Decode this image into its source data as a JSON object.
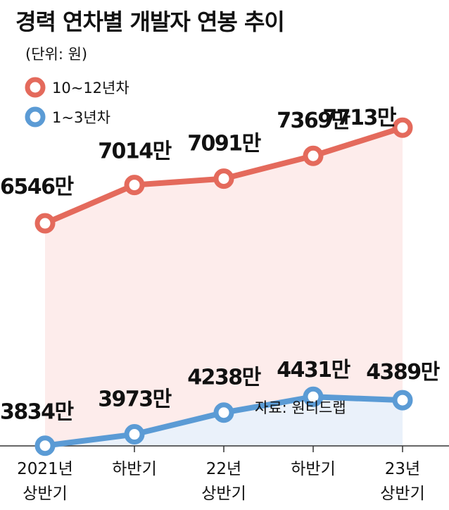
{
  "chart_data": {
    "type": "line",
    "title": "경력 연차별 개발자 연봉 추이",
    "unit_label": "(단위: 원)",
    "categories": [
      {
        "line1": "2021년",
        "line2": "상반기"
      },
      {
        "line1": "하반기",
        "line2": ""
      },
      {
        "line1": "22년",
        "line2": "상반기"
      },
      {
        "line1": "하반기",
        "line2": ""
      },
      {
        "line1": "23년",
        "line2": "상반기"
      }
    ],
    "series": [
      {
        "name": "10~12년차",
        "color": "#e46a5c",
        "fill": "#fdeceb",
        "values": [
          6546,
          7014,
          7091,
          7369,
          7713
        ],
        "labels": [
          "6546만",
          "7014만",
          "7091만",
          "7369만",
          "7713만"
        ]
      },
      {
        "name": "1~3년차",
        "color": "#5b9bd5",
        "fill": "#eaf1fa",
        "values": [
          3834,
          3973,
          4238,
          4431,
          4389
        ],
        "labels": [
          "3834만",
          "3973만",
          "4238만",
          "4431만",
          "4389만"
        ]
      }
    ],
    "legend_position": "top-left",
    "source": "자료: 원티드랩"
  }
}
